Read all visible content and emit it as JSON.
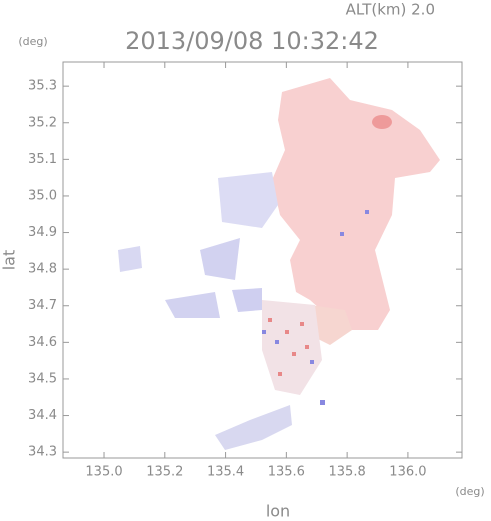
{
  "chart_data": {
    "type": "map",
    "title": "2013/09/08 10:32:42",
    "subtitle": "ALT(km) 2.0",
    "xlabel": "lon",
    "ylabel": "lat",
    "xunit": "(deg)",
    "yunit": "(deg)",
    "xlim": [
      134.865,
      136.178
    ],
    "ylim": [
      34.284,
      35.366
    ],
    "xticks": [
      {
        "value": 135,
        "label": "135.0"
      },
      135.2,
      135.4,
      135.6,
      135.8,
      {
        "value": 136,
        "label": "136.0"
      }
    ],
    "yticks": [
      34.3,
      34.4,
      34.5,
      34.6,
      34.7,
      34.8,
      34.9,
      {
        "value": 35,
        "label": "35.0"
      },
      35.1,
      35.2,
      35.3
    ]
  }
}
